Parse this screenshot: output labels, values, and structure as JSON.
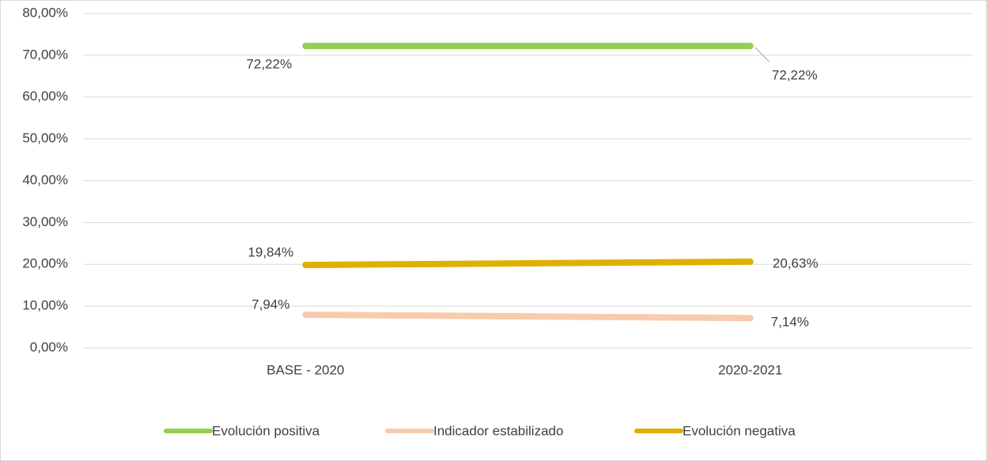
{
  "chart_data": {
    "type": "line",
    "categories": [
      "BASE - 2020",
      "2020-2021"
    ],
    "series": [
      {
        "name": "Evolución positiva",
        "color": "#92d050",
        "values": [
          72.22,
          72.22
        ],
        "value_labels": [
          "72,22%",
          "72,22%"
        ]
      },
      {
        "name": "Indicador estabilizado",
        "color": "#f8cbad",
        "values": [
          7.94,
          7.14
        ],
        "value_labels": [
          "7,94%",
          "7,14%"
        ]
      },
      {
        "name": "Evolución negativa",
        "color": "#e0b000",
        "values": [
          19.84,
          20.63
        ],
        "value_labels": [
          "19,84%",
          "20,63%"
        ]
      }
    ],
    "ylim": [
      0,
      80
    ],
    "yticks": [
      {
        "value": 0,
        "label": "0,00%"
      },
      {
        "value": 10,
        "label": "10,00%"
      },
      {
        "value": 20,
        "label": "20,00%"
      },
      {
        "value": 30,
        "label": "30,00%"
      },
      {
        "value": 40,
        "label": "40,00%"
      },
      {
        "value": 50,
        "label": "50,00%"
      },
      {
        "value": 60,
        "label": "60,00%"
      },
      {
        "value": 70,
        "label": "70,00%"
      },
      {
        "value": 80,
        "label": "80,00%"
      }
    ],
    "grid": true
  }
}
